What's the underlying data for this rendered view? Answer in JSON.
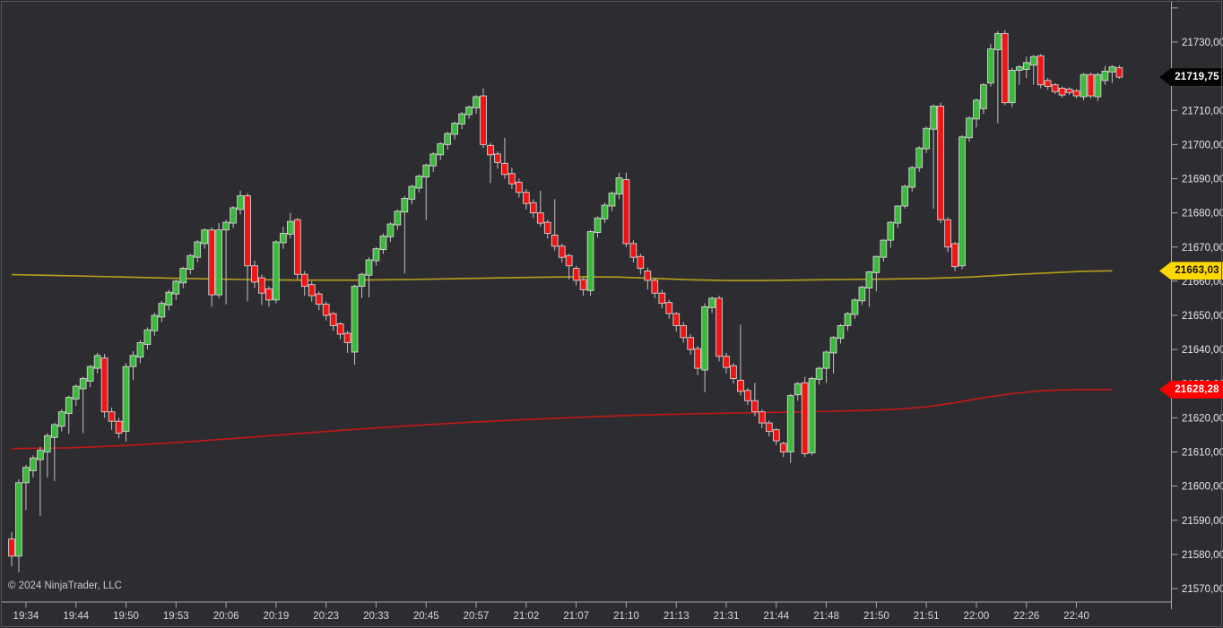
{
  "window": {
    "background": "#2d2d31",
    "border_color": "#56565b"
  },
  "watermark": {
    "copyright": "© 2024 NinjaTrader, LLC"
  },
  "price_axis": {
    "line_color": "#a8a8a8",
    "text_color": "#e6e6e6",
    "ticks": [
      {
        "price": 21740,
        "label": ""
      },
      {
        "price": 21730,
        "label": "21730,00"
      },
      {
        "price": 21720,
        "label": "21720,00"
      },
      {
        "price": 21710,
        "label": "21710,00"
      },
      {
        "price": 21700,
        "label": "21700,00"
      },
      {
        "price": 21690,
        "label": "21690,00"
      },
      {
        "price": 21680,
        "label": "21680,00"
      },
      {
        "price": 21670,
        "label": "21670,00"
      },
      {
        "price": 21660,
        "label": "21660,00"
      },
      {
        "price": 21650,
        "label": "21650,00"
      },
      {
        "price": 21640,
        "label": "21640,00"
      },
      {
        "price": 21630,
        "label": "21630,00"
      },
      {
        "price": 21620,
        "label": "21620,00"
      },
      {
        "price": 21610,
        "label": "21610,00"
      },
      {
        "price": 21600,
        "label": "21600,00"
      },
      {
        "price": 21590,
        "label": "21590,00"
      },
      {
        "price": 21580,
        "label": "21580,00"
      },
      {
        "price": 21570,
        "label": "21570,00"
      }
    ]
  },
  "time_axis": {
    "line_color": "#a8a8a8",
    "text_color": "#d8d8d8",
    "labels": [
      "19:34",
      "19:44",
      "19:50",
      "19:53",
      "20:06",
      "20:19",
      "20:23",
      "20:33",
      "20:45",
      "20:57",
      "21:02",
      "21:07",
      "21:10",
      "21:13",
      "21:31",
      "21:44",
      "21:48",
      "21:50",
      "21:51",
      "22:00",
      "22:26",
      "22:40"
    ]
  },
  "price_tags": {
    "last": {
      "label": "21719,75",
      "value": 21719.75,
      "bg": "#050505",
      "text_color": "#ffffff"
    },
    "yellow_ma": {
      "label": "21663,03",
      "value": 21663.03,
      "bg": "#ffd800",
      "text_color": "#141414"
    },
    "red_ma": {
      "label": "21628,28",
      "value": 21628.28,
      "bg": "#fe0000",
      "text_color": "#ffffff"
    }
  },
  "chart_data": {
    "type": "candlestick",
    "title": "",
    "ylim": [
      21566,
      21742
    ],
    "price_tick_step": 10,
    "bar_count": 156,
    "label_every_n_bars": 7,
    "first_labeled_bar_index": 2,
    "up_color": "#3cb83c",
    "down_color": "#ef1515",
    "outline_color": "#d4d4d4",
    "wick_color": "#c2c2c2",
    "candles_ohlc": [
      [
        21584.5,
        21586.5,
        21576.5,
        21579.5
      ],
      [
        21579.5,
        21602,
        21574.75,
        21601
      ],
      [
        21601,
        21606.25,
        21593,
        21605.5
      ],
      [
        21604.5,
        21609,
        21602.5,
        21608.25
      ],
      [
        21607.75,
        21611.5,
        21591.25,
        21610.5
      ],
      [
        21610,
        21615.5,
        21602.5,
        21614.75
      ],
      [
        21614.25,
        21618.5,
        21601.5,
        21618
      ],
      [
        21617.5,
        21622.5,
        21616,
        21621.75
      ],
      [
        21621.25,
        21626.5,
        21615.25,
        21626
      ],
      [
        21625.5,
        21629.75,
        21623.5,
        21629.25
      ],
      [
        21628.5,
        21632,
        21615.5,
        21631.5
      ],
      [
        21630.75,
        21635.5,
        21629,
        21635
      ],
      [
        21634.5,
        21639,
        21633,
        21638.25
      ],
      [
        21637.5,
        21638.75,
        21620,
        21621.75
      ],
      [
        21621.75,
        21623,
        21616.5,
        21619
      ],
      [
        21619,
        21620,
        21614,
        21615.5
      ],
      [
        21616,
        21636,
        21613,
        21635
      ],
      [
        21635,
        21639.5,
        21631,
        21638.25
      ],
      [
        21637.75,
        21642.75,
        21636,
        21642
      ],
      [
        21641.5,
        21646.5,
        21640,
        21645.75
      ],
      [
        21645.5,
        21650.75,
        21644,
        21650
      ],
      [
        21649.5,
        21654.25,
        21648,
        21653.5
      ],
      [
        21653,
        21657.5,
        21651.5,
        21656.75
      ],
      [
        21656.25,
        21660.5,
        21654.5,
        21660
      ],
      [
        21659.5,
        21664.25,
        21658,
        21663.75
      ],
      [
        21663.5,
        21668,
        21662,
        21667.5
      ],
      [
        21667,
        21672,
        21665.5,
        21671.5
      ],
      [
        21671,
        21675.5,
        21669.5,
        21675
      ],
      [
        21675,
        21675.75,
        21652.5,
        21656
      ],
      [
        21656,
        21677,
        21655,
        21675
      ],
      [
        21675,
        21678,
        21653.25,
        21677.25
      ],
      [
        21677,
        21682,
        21675.5,
        21681.5
      ],
      [
        21681,
        21686.5,
        21679.5,
        21685
      ],
      [
        21685,
        21685.75,
        21654,
        21664.5
      ],
      [
        21664.5,
        21666,
        21658,
        21659.75
      ],
      [
        21661,
        21662,
        21653,
        21656.5
      ],
      [
        21657.75,
        21658.5,
        21652.5,
        21654.5
      ],
      [
        21654.5,
        21672,
        21653.5,
        21671.5
      ],
      [
        21671.25,
        21676,
        21669.5,
        21674
      ],
      [
        21673.75,
        21680,
        21672.5,
        21677.5
      ],
      [
        21678,
        21678.5,
        21660.5,
        21662
      ],
      [
        21662,
        21663,
        21655.75,
        21658.5
      ],
      [
        21659,
        21660,
        21654,
        21655.75
      ],
      [
        21656.25,
        21657,
        21651.5,
        21653.25
      ],
      [
        21653.25,
        21654,
        21648.5,
        21650
      ],
      [
        21650.5,
        21651,
        21645.5,
        21647
      ],
      [
        21647.5,
        21648,
        21643,
        21644.5
      ],
      [
        21644.75,
        21645.5,
        21639,
        21642
      ],
      [
        21639.25,
        21659,
        21635.5,
        21658.5
      ],
      [
        21658.5,
        21662.5,
        21655,
        21662
      ],
      [
        21661.75,
        21667,
        21655.25,
        21666.25
      ],
      [
        21666,
        21670,
        21664.5,
        21669.5
      ],
      [
        21669.25,
        21674,
        21668,
        21673.25
      ],
      [
        21673,
        21677.25,
        21671.5,
        21676.75
      ],
      [
        21676.5,
        21681,
        21675,
        21680.5
      ],
      [
        21680.25,
        21685,
        21662.25,
        21684.25
      ],
      [
        21684,
        21688.25,
        21682.5,
        21687.75
      ],
      [
        21687.25,
        21691.25,
        21686,
        21690.75
      ],
      [
        21690.5,
        21694.5,
        21678,
        21694
      ],
      [
        21693.75,
        21697.75,
        21692,
        21697.25
      ],
      [
        21697,
        21700.75,
        21695.5,
        21700.25
      ],
      [
        21700,
        21703.75,
        21698.5,
        21703.25
      ],
      [
        21703,
        21706.75,
        21701.5,
        21706.25
      ],
      [
        21706,
        21709.5,
        21704.5,
        21709
      ],
      [
        21708.75,
        21711.5,
        21707.5,
        21711
      ],
      [
        21710.75,
        21714.5,
        21709,
        21714
      ],
      [
        21714.25,
        21716.5,
        21699,
        21700
      ],
      [
        21699.75,
        21700.5,
        21688.75,
        21697
      ],
      [
        21697.25,
        21698,
        21693,
        21694.75
      ],
      [
        21694.5,
        21702,
        21690,
        21691.25
      ],
      [
        21691.5,
        21693.25,
        21687,
        21688.5
      ],
      [
        21689,
        21690,
        21684.5,
        21686
      ],
      [
        21686,
        21687,
        21681,
        21682.75
      ],
      [
        21683,
        21684,
        21678.5,
        21680
      ],
      [
        21680,
        21686.5,
        21676,
        21677
      ],
      [
        21677.25,
        21678,
        21672.5,
        21674
      ],
      [
        21673.5,
        21684,
        21669,
        21670.25
      ],
      [
        21670.25,
        21671,
        21665.5,
        21667
      ],
      [
        21667.5,
        21668,
        21660.5,
        21664.5
      ],
      [
        21663.75,
        21664.5,
        21658.75,
        21660.25
      ],
      [
        21660.5,
        21661,
        21655.75,
        21657.5
      ],
      [
        21657.25,
        21675,
        21655.75,
        21674.5
      ],
      [
        21674.25,
        21679,
        21672.75,
        21678.5
      ],
      [
        21678.25,
        21683,
        21677,
        21682.25
      ],
      [
        21682,
        21686.25,
        21680.5,
        21685.75
      ],
      [
        21685.5,
        21691.75,
        21684,
        21690.25
      ],
      [
        21689.75,
        21691.75,
        21670,
        21671
      ],
      [
        21671,
        21672,
        21665.5,
        21667
      ],
      [
        21667.25,
        21668,
        21662,
        21663.75
      ],
      [
        21663,
        21664,
        21657.5,
        21660.25
      ],
      [
        21660.25,
        21661,
        21655,
        21656.5
      ],
      [
        21656.5,
        21657.5,
        21652,
        21653.5
      ],
      [
        21653.75,
        21654.5,
        21649,
        21650.5
      ],
      [
        21650.5,
        21651,
        21645.25,
        21647
      ],
      [
        21647,
        21648,
        21642,
        21643.5
      ],
      [
        21643.5,
        21644.5,
        21638.5,
        21640
      ],
      [
        21640.25,
        21641,
        21632.5,
        21634.5
      ],
      [
        21634,
        21653.5,
        21627.5,
        21652.5
      ],
      [
        21652.25,
        21655.5,
        21650.75,
        21655
      ],
      [
        21655,
        21655.75,
        21636.5,
        21638
      ],
      [
        21638,
        21639,
        21633,
        21634.75
      ],
      [
        21635.25,
        21636,
        21630,
        21631.5
      ],
      [
        21631,
        21647.25,
        21626.5,
        21627.75
      ],
      [
        21628,
        21628.75,
        21623.75,
        21625
      ],
      [
        21625,
        21630.25,
        21620.5,
        21621.75
      ],
      [
        21621.75,
        21622.5,
        21617,
        21618.5
      ],
      [
        21618.5,
        21619.25,
        21614.5,
        21616
      ],
      [
        21616.5,
        21617,
        21612,
        21613.25
      ],
      [
        21612.5,
        21613,
        21608.5,
        21610
      ],
      [
        21610,
        21627,
        21606.75,
        21626.5
      ],
      [
        21626.75,
        21630.5,
        21625,
        21630
      ],
      [
        21630.25,
        21632,
        21608.5,
        21609.5
      ],
      [
        21609.75,
        21632,
        21609,
        21631.5
      ],
      [
        21631.25,
        21635,
        21629.75,
        21634.5
      ],
      [
        21634.5,
        21639.75,
        21630.25,
        21639.25
      ],
      [
        21639,
        21644,
        21633,
        21643.5
      ],
      [
        21643.25,
        21647.5,
        21641.75,
        21647
      ],
      [
        21647,
        21651,
        21645.5,
        21650.5
      ],
      [
        21650.25,
        21655,
        21649,
        21654.5
      ],
      [
        21654.25,
        21658.75,
        21653,
        21658.25
      ],
      [
        21658,
        21663,
        21652.5,
        21662.75
      ],
      [
        21662.5,
        21667.5,
        21657,
        21667.25
      ],
      [
        21667,
        21672.25,
        21665.75,
        21672
      ],
      [
        21672,
        21677.5,
        21669.75,
        21677.25
      ],
      [
        21677,
        21682.25,
        21675.5,
        21682
      ],
      [
        21682,
        21688.25,
        21681.25,
        21687.75
      ],
      [
        21687.5,
        21693.75,
        21686.25,
        21693.25
      ],
      [
        21693.25,
        21699.5,
        21692,
        21699
      ],
      [
        21698.75,
        21705.25,
        21697.5,
        21704.75
      ],
      [
        21704.5,
        21711.75,
        21681.25,
        21711.25
      ],
      [
        21711.25,
        21712.25,
        21677,
        21678
      ],
      [
        21678,
        21678.75,
        21668.5,
        21670
      ],
      [
        21671,
        21671.5,
        21663,
        21664.25
      ],
      [
        21664.5,
        21702.75,
        21663.5,
        21702.25
      ],
      [
        21702,
        21708.25,
        21700.75,
        21707.75
      ],
      [
        21707.5,
        21713.5,
        21705,
        21713
      ],
      [
        21710.5,
        21718,
        21709,
        21717.5
      ],
      [
        21718,
        21729.5,
        21717,
        21728
      ],
      [
        21727.75,
        21733.25,
        21706.25,
        21732.5
      ],
      [
        21732.5,
        21733.5,
        21711.5,
        21712.25
      ],
      [
        21712.25,
        21722.5,
        21711,
        21721.75
      ],
      [
        21721.75,
        21723.25,
        21717.5,
        21722.75
      ],
      [
        21722,
        21725.75,
        21719.5,
        21724
      ],
      [
        21723.25,
        21726.25,
        21717.5,
        21725.75
      ],
      [
        21726,
        21726.5,
        21716.5,
        21717.5
      ],
      [
        21718.75,
        21719.5,
        21716,
        21717
      ],
      [
        21717.5,
        21718,
        21714.75,
        21715.5
      ],
      [
        21716.5,
        21717,
        21713.75,
        21714.5
      ],
      [
        21716.25,
        21716.75,
        21714.5,
        21715.25
      ],
      [
        21715.75,
        21716.25,
        21713.5,
        21714.25
      ],
      [
        21714,
        21721,
        21713,
        21720.5
      ],
      [
        21720.5,
        21721,
        21713.5,
        21714.25
      ],
      [
        21714,
        21721,
        21712.75,
        21720.5
      ],
      [
        21718.75,
        21723,
        21717.5,
        21721.5
      ],
      [
        21721.25,
        21723.25,
        21718,
        21722.75
      ],
      [
        21722.5,
        21723.25,
        21719.25,
        21719.75
      ]
    ],
    "overlays": [
      {
        "name": "yellow-ma",
        "color": "#b5a01a",
        "points_index_price": [
          [
            0,
            21661.9
          ],
          [
            8,
            21661.6
          ],
          [
            16,
            21661.2
          ],
          [
            24,
            21660.8
          ],
          [
            32,
            21660.5
          ],
          [
            40,
            21660.3
          ],
          [
            48,
            21660.3
          ],
          [
            56,
            21660.5
          ],
          [
            64,
            21660.8
          ],
          [
            72,
            21661.1
          ],
          [
            80,
            21661.3
          ],
          [
            85,
            21661.2
          ],
          [
            90,
            21660.8
          ],
          [
            95,
            21660.4
          ],
          [
            100,
            21660.2
          ],
          [
            105,
            21660.2
          ],
          [
            110,
            21660.3
          ],
          [
            116,
            21660.5
          ],
          [
            122,
            21660.6
          ],
          [
            128,
            21660.8
          ],
          [
            134,
            21661.2
          ],
          [
            140,
            21661.9
          ],
          [
            145,
            21662.4
          ],
          [
            150,
            21662.9
          ],
          [
            154,
            21663.03
          ]
        ]
      },
      {
        "name": "red-ma",
        "color": "#c21717",
        "points_index_price": [
          [
            0,
            21611.0
          ],
          [
            8,
            21611.2
          ],
          [
            16,
            21611.9
          ],
          [
            24,
            21612.9
          ],
          [
            32,
            21614.1
          ],
          [
            40,
            21615.4
          ],
          [
            48,
            21616.6
          ],
          [
            56,
            21617.7
          ],
          [
            64,
            21618.7
          ],
          [
            72,
            21619.5
          ],
          [
            80,
            21620.2
          ],
          [
            88,
            21620.8
          ],
          [
            96,
            21621.2
          ],
          [
            104,
            21621.5
          ],
          [
            112,
            21621.8
          ],
          [
            118,
            21622.1
          ],
          [
            124,
            21622.5
          ],
          [
            128,
            21623.2
          ],
          [
            132,
            21624.4
          ],
          [
            136,
            21625.9
          ],
          [
            140,
            21627.1
          ],
          [
            144,
            21627.9
          ],
          [
            148,
            21628.2
          ],
          [
            154,
            21628.28
          ]
        ]
      }
    ]
  }
}
